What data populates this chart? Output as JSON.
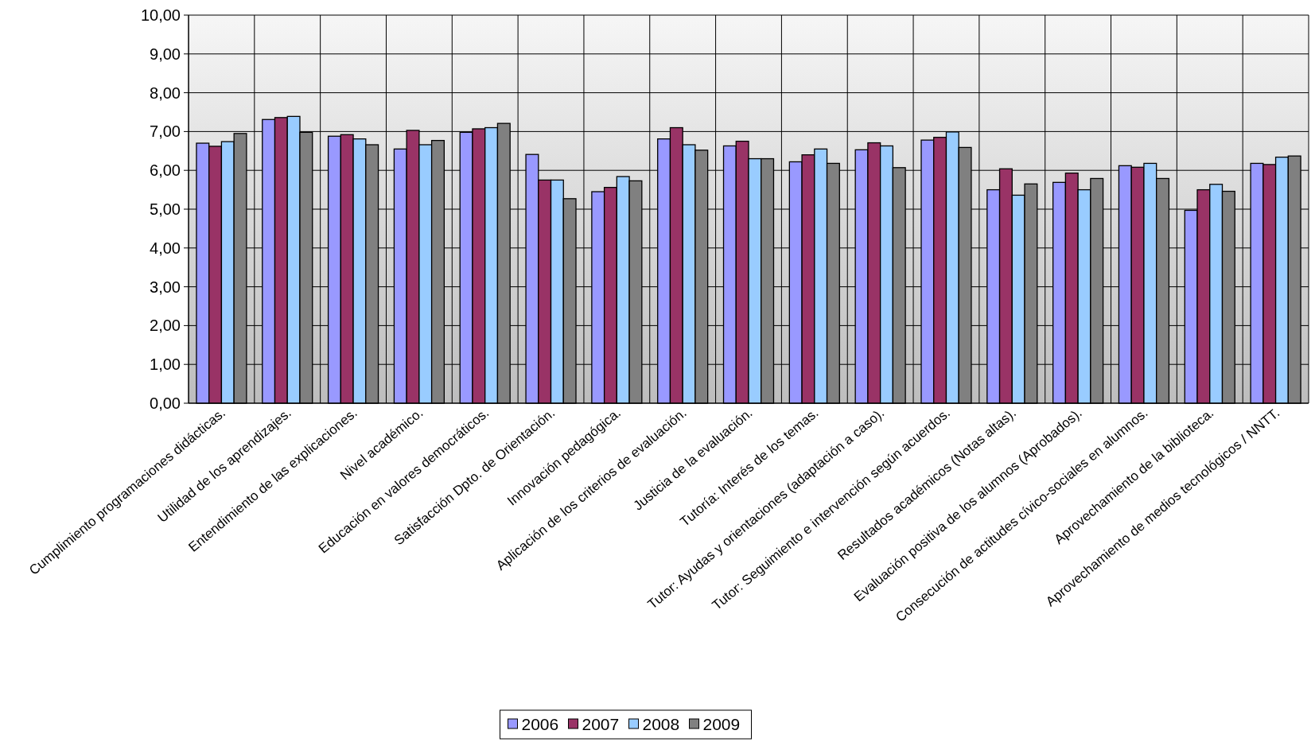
{
  "chart_data": {
    "type": "bar",
    "categories": [
      "Cumplimiento programaciones didácticas.",
      "Utilidad de los aprendizajes.",
      "Entendimiento de las explicaciones.",
      "Nivel académico.",
      "Educación en valores democráticos.",
      "Satisfacción Dpto. de Orientación.",
      "Innovación pedagógica.",
      "Aplicación de los criterios de evaluación.",
      "Justicia de la evaluación.",
      "Tutoría: Interés de los temas.",
      "Tutor: Ayudas y orientaciones (adaptación a caso).",
      "Tutor: Seguimiento e intervención según acuerdos.",
      "Resultados académicos (Notas altas).",
      "Evaluación positiva de los alumnos (Aprobados).",
      "Consecución de actitudes cívico-sociales en alumnos.",
      "Aprovechamiento de la biblioteca.",
      "Aprovechamiento de medios tecnológicos / NNTT."
    ],
    "series": [
      {
        "name": "2006",
        "color": "#9999ff",
        "values": [
          6.7,
          7.31,
          6.88,
          6.55,
          6.98,
          6.41,
          5.45,
          6.81,
          6.63,
          6.22,
          6.53,
          6.78,
          5.5,
          5.69,
          6.12,
          4.97,
          6.18
        ]
      },
      {
        "name": "2007",
        "color": "#993366",
        "values": [
          6.62,
          7.36,
          6.92,
          7.03,
          7.07,
          5.75,
          5.56,
          7.1,
          6.75,
          6.4,
          6.71,
          6.85,
          6.04,
          5.93,
          6.08,
          5.5,
          6.15
        ]
      },
      {
        "name": "2008",
        "color": "#99ccff",
        "values": [
          6.74,
          7.39,
          6.81,
          6.66,
          7.1,
          5.75,
          5.84,
          6.66,
          6.3,
          6.55,
          6.63,
          6.99,
          5.36,
          5.5,
          6.18,
          5.64,
          6.34
        ]
      },
      {
        "name": "2009",
        "color": "#808080",
        "values": [
          6.95,
          6.98,
          6.66,
          6.77,
          7.21,
          5.27,
          5.73,
          6.52,
          6.3,
          6.18,
          6.07,
          6.59,
          5.65,
          5.79,
          5.79,
          5.46,
          6.37
        ]
      }
    ],
    "ylim": [
      0,
      10
    ],
    "yticks": [
      {
        "value": 0,
        "label": "0,00"
      },
      {
        "value": 1,
        "label": "1,00"
      },
      {
        "value": 2,
        "label": "2,00"
      },
      {
        "value": 3,
        "label": "3,00"
      },
      {
        "value": 4,
        "label": "4,00"
      },
      {
        "value": 5,
        "label": "5,00"
      },
      {
        "value": 6,
        "label": "6,00"
      },
      {
        "value": 7,
        "label": "7,00"
      },
      {
        "value": 8,
        "label": "8,00"
      },
      {
        "value": 9,
        "label": "9,00"
      },
      {
        "value": 10,
        "label": "10,00"
      }
    ],
    "grid": true,
    "legend": "bottom"
  }
}
